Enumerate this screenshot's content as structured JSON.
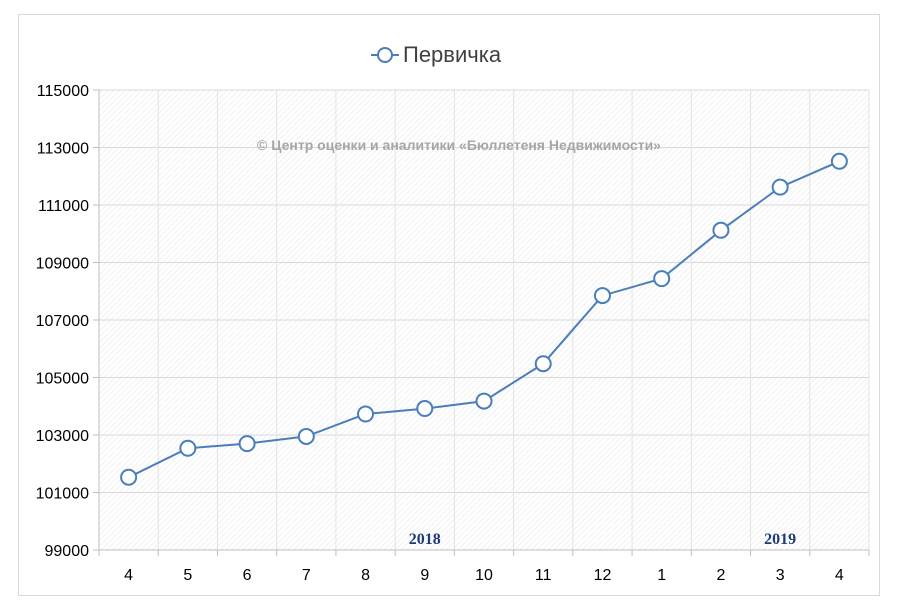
{
  "chart_data": {
    "type": "line",
    "title": "",
    "xlabel": "",
    "ylabel": "",
    "categories": [
      "4",
      "5",
      "6",
      "7",
      "8",
      "9",
      "10",
      "11",
      "12",
      "1",
      "2",
      "3",
      "4"
    ],
    "series": [
      {
        "name": "Первичка",
        "values": [
          101530,
          102540,
          102700,
          102950,
          103730,
          103920,
          104180,
          105480,
          107850,
          108440,
          110120,
          111620,
          112520
        ],
        "color": "#4a7ebb",
        "marker": "circle-hollow"
      }
    ],
    "ylim": [
      99000,
      115000
    ],
    "yticks": [
      "99000",
      "101000",
      "103000",
      "105000",
      "107000",
      "109000",
      "111000",
      "113000",
      "115000"
    ],
    "grid": true,
    "legend": "top-center",
    "annotations": {
      "watermark": "© Центр оценки и аналитики «Бюллетеня Недвижимости»",
      "years": [
        {
          "label": "2018",
          "category_index": 5
        },
        {
          "label": "2019",
          "category_index": 11
        }
      ]
    }
  }
}
